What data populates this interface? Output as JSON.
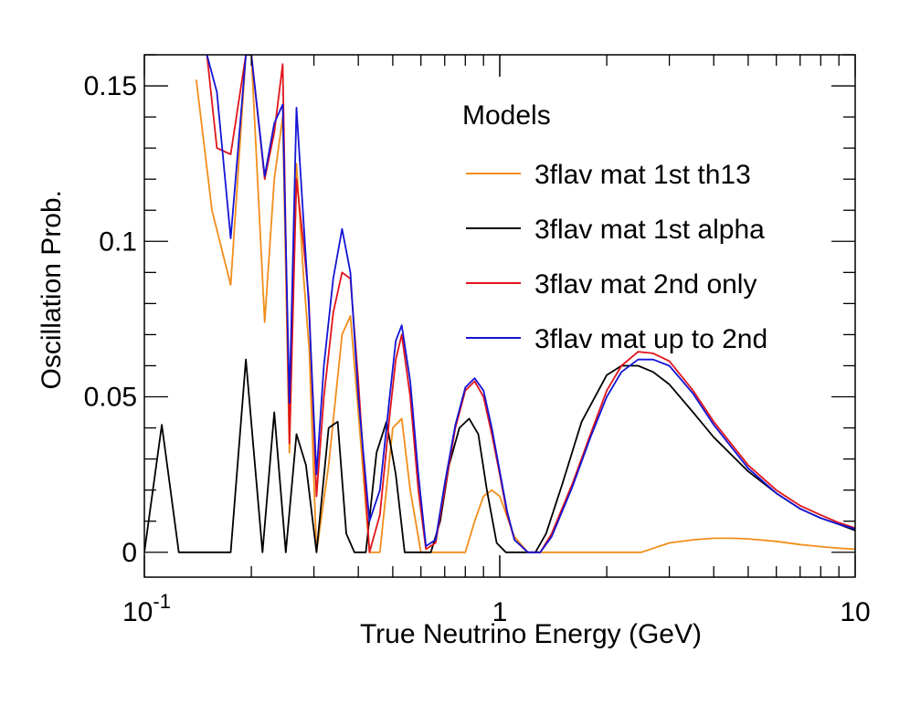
{
  "chart_data": {
    "type": "line",
    "title": "",
    "xlabel": "True Neutrino Energy (GeV)",
    "ylabel": "Oscillation Prob.",
    "x_scale": "log",
    "xlim": [
      0.1,
      10
    ],
    "ylim": [
      -0.008,
      0.16
    ],
    "x_ticks": [
      {
        "value": 0.1,
        "base": "10",
        "exp": "-1"
      },
      {
        "value": 1,
        "base": "1",
        "exp": ""
      },
      {
        "value": 10,
        "base": "10",
        "exp": ""
      }
    ],
    "y_ticks": [
      {
        "value": 0,
        "label": "0"
      },
      {
        "value": 0.05,
        "label": "0.05"
      },
      {
        "value": 0.1,
        "label": "0.1"
      },
      {
        "value": 0.15,
        "label": "0.15"
      }
    ],
    "grid": false,
    "legend": {
      "title": "Models",
      "placement": "top-right",
      "entries": [
        "3flav mat 1st th13",
        "3flav mat 1st alpha",
        "3flav mat 2nd only",
        "3flav mat up to 2nd"
      ]
    },
    "series": [
      {
        "name": "3flav mat 1st th13",
        "color": "#f28e1b",
        "x": [
          0.14,
          0.155,
          0.175,
          0.193,
          0.2,
          0.218,
          0.232,
          0.245,
          0.256,
          0.268,
          0.28,
          0.291,
          0.305,
          0.33,
          0.36,
          0.38,
          0.4,
          0.43,
          0.46,
          0.5,
          0.53,
          0.56,
          0.6,
          0.65,
          0.7,
          0.75,
          0.8,
          0.85,
          0.9,
          0.95,
          1.0,
          1.1,
          1.2,
          1.3,
          1.5,
          1.8,
          2.2,
          2.5,
          3.0,
          3.5,
          4.0,
          4.5,
          5.0,
          6.0,
          7.0,
          8.0,
          9.0,
          10.0
        ],
        "y": [
          0.152,
          0.11,
          0.086,
          0.16,
          0.16,
          0.074,
          0.12,
          0.14,
          0.032,
          0.125,
          0.09,
          0.065,
          0.0,
          0.028,
          0.07,
          0.076,
          0.045,
          0.0,
          0.0,
          0.04,
          0.043,
          0.02,
          0.0,
          0.0,
          0.0,
          0.0,
          0.0,
          0.01,
          0.018,
          0.02,
          0.018,
          0.005,
          0.0,
          0.0,
          0.0,
          0.0,
          0.0,
          0.0,
          0.003,
          0.004,
          0.0045,
          0.0045,
          0.0043,
          0.0035,
          0.0025,
          0.0018,
          0.0013,
          0.001
        ]
      },
      {
        "name": "3flav mat 1st alpha",
        "color": "#000000",
        "x": [
          0.1,
          0.112,
          0.125,
          0.14,
          0.16,
          0.175,
          0.193,
          0.215,
          0.232,
          0.25,
          0.268,
          0.285,
          0.305,
          0.33,
          0.35,
          0.37,
          0.39,
          0.42,
          0.45,
          0.48,
          0.51,
          0.54,
          0.57,
          0.6,
          0.64,
          0.68,
          0.72,
          0.77,
          0.82,
          0.87,
          0.92,
          0.98,
          1.04,
          1.1,
          1.18,
          1.26,
          1.35,
          1.5,
          1.7,
          2.0,
          2.2,
          2.45,
          2.7,
          3.0,
          3.5,
          4.0,
          5.0,
          6.0,
          7.0,
          8.0,
          9.0,
          10.0
        ],
        "y": [
          0.0,
          0.041,
          0.0,
          0.0,
          0.0,
          0.0,
          0.062,
          0.0,
          0.045,
          0.0,
          0.038,
          0.028,
          0.0,
          0.04,
          0.042,
          0.006,
          0.0,
          0.0,
          0.032,
          0.042,
          0.025,
          0.0,
          0.0,
          0.0,
          0.0,
          0.01,
          0.028,
          0.04,
          0.043,
          0.038,
          0.02,
          0.003,
          0.0,
          0.0,
          0.0,
          0.0,
          0.006,
          0.022,
          0.042,
          0.057,
          0.06,
          0.06,
          0.058,
          0.054,
          0.045,
          0.037,
          0.026,
          0.019,
          0.014,
          0.011,
          0.009,
          0.007
        ]
      },
      {
        "name": "3flav mat 2nd only",
        "color": "#e0151b",
        "x": [
          0.15,
          0.16,
          0.175,
          0.193,
          0.2,
          0.218,
          0.232,
          0.245,
          0.256,
          0.268,
          0.28,
          0.29,
          0.305,
          0.32,
          0.34,
          0.36,
          0.38,
          0.4,
          0.43,
          0.46,
          0.49,
          0.51,
          0.53,
          0.56,
          0.59,
          0.62,
          0.66,
          0.7,
          0.75,
          0.8,
          0.85,
          0.9,
          0.95,
          1.0,
          1.05,
          1.1,
          1.2,
          1.3,
          1.4,
          1.6,
          1.8,
          2.0,
          2.2,
          2.45,
          2.7,
          3.0,
          3.5,
          4.0,
          5.0,
          6.0,
          7.0,
          8.0,
          9.0,
          10.0
        ],
        "y": [
          0.16,
          0.13,
          0.128,
          0.16,
          0.16,
          0.12,
          0.135,
          0.157,
          0.035,
          0.12,
          0.1,
          0.082,
          0.018,
          0.05,
          0.077,
          0.09,
          0.088,
          0.055,
          0.0,
          0.012,
          0.044,
          0.062,
          0.07,
          0.05,
          0.02,
          0.001,
          0.003,
          0.02,
          0.04,
          0.052,
          0.055,
          0.05,
          0.038,
          0.025,
          0.012,
          0.004,
          0.0,
          0.0,
          0.006,
          0.022,
          0.038,
          0.052,
          0.06,
          0.0645,
          0.064,
          0.0615,
          0.052,
          0.042,
          0.028,
          0.02,
          0.015,
          0.012,
          0.0095,
          0.0078
        ]
      },
      {
        "name": "3flav mat up to 2nd",
        "color": "#1414d6",
        "x": [
          0.15,
          0.16,
          0.175,
          0.193,
          0.2,
          0.218,
          0.232,
          0.245,
          0.256,
          0.268,
          0.28,
          0.29,
          0.305,
          0.32,
          0.34,
          0.36,
          0.38,
          0.4,
          0.43,
          0.46,
          0.49,
          0.51,
          0.53,
          0.56,
          0.59,
          0.62,
          0.66,
          0.7,
          0.75,
          0.8,
          0.85,
          0.9,
          0.95,
          1.0,
          1.05,
          1.1,
          1.2,
          1.3,
          1.4,
          1.6,
          1.8,
          2.0,
          2.2,
          2.45,
          2.7,
          3.0,
          3.5,
          4.0,
          5.0,
          6.0,
          7.0,
          8.0,
          9.0,
          10.0
        ],
        "y": [
          0.16,
          0.148,
          0.101,
          0.16,
          0.16,
          0.121,
          0.138,
          0.144,
          0.048,
          0.143,
          0.108,
          0.08,
          0.025,
          0.06,
          0.088,
          0.104,
          0.09,
          0.05,
          0.01,
          0.02,
          0.05,
          0.068,
          0.073,
          0.055,
          0.025,
          0.002,
          0.004,
          0.022,
          0.041,
          0.053,
          0.056,
          0.052,
          0.04,
          0.026,
          0.013,
          0.004,
          0.0,
          0.0,
          0.005,
          0.021,
          0.037,
          0.05,
          0.058,
          0.062,
          0.062,
          0.06,
          0.051,
          0.041,
          0.027,
          0.019,
          0.014,
          0.011,
          0.009,
          0.0075
        ]
      }
    ]
  }
}
